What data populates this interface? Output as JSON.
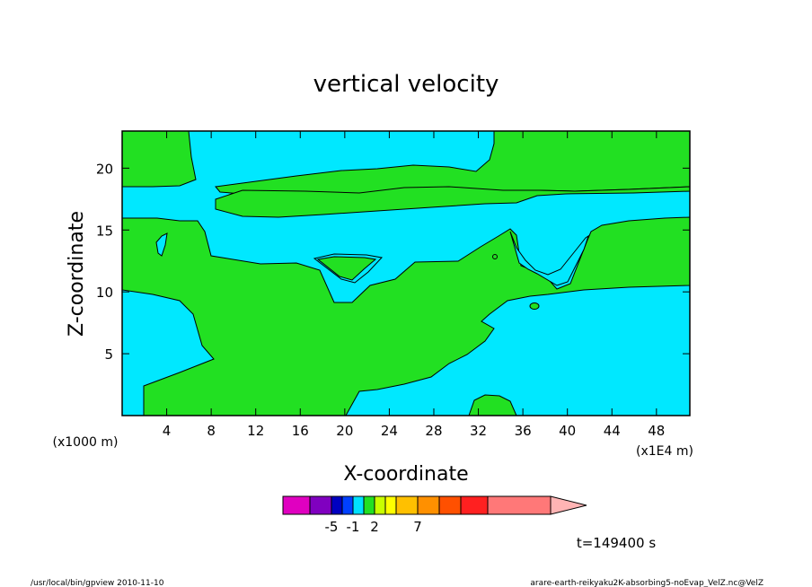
{
  "chart_data": {
    "type": "contour",
    "title": "vertical velocity",
    "xlabel": "X-coordinate",
    "ylabel": "Z-coordinate",
    "x_scale_label": "(x1E4 m)",
    "y_scale_label": "(x1000 m)",
    "xlim": [
      0,
      51
    ],
    "ylim": [
      0,
      23
    ],
    "xticks": [
      4,
      8,
      12,
      16,
      20,
      24,
      28,
      32,
      36,
      40,
      44,
      48
    ],
    "yticks": [
      5,
      10,
      15,
      20
    ],
    "field_colors": {
      "negative": "#00e8ff",
      "positive": "#22e022"
    },
    "colorbar": {
      "colors": [
        "#e000c0",
        "#8000c0",
        "#0000c0",
        "#0040ff",
        "#00e0ff",
        "#22e022",
        "#c8ff00",
        "#ffff00",
        "#ffc000",
        "#ff9000",
        "#ff5000",
        "#ff2020",
        "#ff7878",
        "#ffb4b4"
      ],
      "labels": [
        "-5",
        "-1",
        "2",
        "7"
      ],
      "label_index": [
        1,
        3,
        5,
        8
      ]
    },
    "time_label": "t=149400 s"
  },
  "footer": {
    "left": "/usr/local/bin/gpview  2010-11-10",
    "right": "arare-earth-reikyaku2K-absorbing5-noEvap_VelZ.nc@VelZ"
  }
}
